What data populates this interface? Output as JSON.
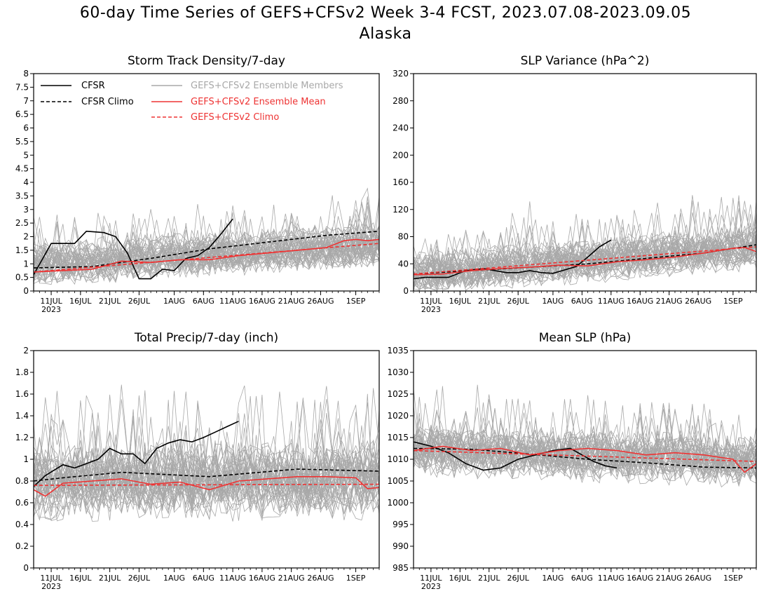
{
  "page": {
    "title": "60-day Time Series of GEFS+CFSv2 Week 3-4 FCST, 2023.07.08-2023.09.05",
    "subtitle": "Alaska"
  },
  "colors": {
    "cfsr": "#000000",
    "members": "#a8a8a8",
    "ens_mean": "#ee3333"
  },
  "legend": {
    "cfsr": "CFSR",
    "cfsr_climo": "CFSR Climo",
    "members": "GEFS+CFSv2 Ensemble Members",
    "ens_mean": "GEFS+CFSv2 Ensemble Mean",
    "ens_climo": "GEFS+CFSv2 Climo"
  },
  "x_axis": {
    "ticks": [
      "11JUL",
      "16JUL",
      "21JUL",
      "26JUL",
      "1AUG",
      "6AUG",
      "11AUG",
      "16AUG",
      "21AUG",
      "26AUG",
      "1SEP"
    ],
    "tick_days": [
      3,
      8,
      13,
      18,
      24,
      29,
      34,
      39,
      44,
      49,
      55
    ],
    "year_label": "2023",
    "n_days": 60
  },
  "chart_data": [
    {
      "type": "line",
      "title": "Storm Track Density/7-day",
      "ylim": [
        0,
        8
      ],
      "yticks": [
        "0",
        "0.5",
        "1",
        "1.5",
        "2",
        "2.5",
        "3",
        "3.5",
        "4",
        "4.5",
        "5",
        "5.5",
        "6",
        "6.5",
        "7",
        "7.5",
        "8"
      ],
      "ytick_values": [
        0,
        0.5,
        1,
        1.5,
        2,
        2.5,
        3,
        3.5,
        4,
        4.5,
        5,
        5.5,
        6,
        6.5,
        7,
        7.5,
        8
      ],
      "member_band": {
        "base_start": 1.0,
        "base_end": 1.7,
        "spread": 0.7
      },
      "series": [
        {
          "name": "CFSR",
          "style": "solid",
          "color": "#000000",
          "x": [
            0,
            3,
            7,
            9,
            12,
            14,
            16,
            18,
            20,
            22,
            24,
            26,
            28,
            30,
            32,
            34
          ],
          "y": [
            0.6,
            1.75,
            1.75,
            2.2,
            2.15,
            2.0,
            1.4,
            0.45,
            0.45,
            0.8,
            0.75,
            1.2,
            1.3,
            1.6,
            2.1,
            2.65
          ]
        },
        {
          "name": "CFSR Climo",
          "style": "dashed",
          "color": "#000000",
          "x": [
            0,
            10,
            20,
            30,
            40,
            50,
            59
          ],
          "y": [
            0.85,
            0.9,
            1.2,
            1.55,
            1.8,
            2.05,
            2.2
          ]
        },
        {
          "name": "GEFS+CFSv2 Ensemble Mean",
          "style": "solid",
          "color": "#ee3333",
          "x": [
            0,
            5,
            10,
            15,
            20,
            25,
            30,
            35,
            40,
            45,
            50,
            53,
            55,
            57,
            59
          ],
          "y": [
            0.7,
            0.75,
            0.8,
            1.1,
            1.05,
            1.15,
            1.15,
            1.3,
            1.4,
            1.5,
            1.6,
            1.85,
            1.9,
            1.85,
            1.9
          ]
        },
        {
          "name": "GEFS+CFSv2 Climo",
          "style": "dashed",
          "color": "#ee3333",
          "x": [
            0,
            59
          ],
          "y": [
            0.7,
            1.75
          ]
        }
      ]
    },
    {
      "type": "line",
      "title": "SLP Variance (hPa^2)",
      "ylim": [
        0,
        320
      ],
      "yticks": [
        "0",
        "40",
        "80",
        "120",
        "160",
        "200",
        "240",
        "280",
        "320"
      ],
      "ytick_values": [
        0,
        40,
        80,
        120,
        160,
        200,
        240,
        280,
        320
      ],
      "member_band": {
        "base_start": 25,
        "base_end": 65,
        "spread": 28
      },
      "series": [
        {
          "name": "CFSR",
          "style": "solid",
          "color": "#000000",
          "x": [
            0,
            2,
            6,
            9,
            12,
            14,
            16,
            18,
            20,
            22,
            24,
            26,
            28,
            30,
            32,
            34
          ],
          "y": [
            18,
            20,
            20,
            30,
            33,
            30,
            27,
            27,
            30,
            27,
            26,
            31,
            36,
            50,
            65,
            75
          ]
        },
        {
          "name": "CFSR Climo",
          "style": "dashed",
          "color": "#000000",
          "x": [
            0,
            10,
            20,
            30,
            40,
            50,
            59
          ],
          "y": [
            25,
            30,
            35,
            40,
            48,
            56,
            68
          ]
        },
        {
          "name": "GEFS+CFSv2 Ensemble Mean",
          "style": "solid",
          "color": "#ee3333",
          "x": [
            0,
            5,
            10,
            15,
            20,
            25,
            30,
            35,
            40,
            45,
            50,
            55,
            57,
            59
          ],
          "y": [
            24,
            25,
            30,
            33,
            35,
            38,
            37,
            43,
            46,
            50,
            56,
            63,
            64,
            58
          ]
        },
        {
          "name": "GEFS+CFSv2 Climo",
          "style": "dashed",
          "color": "#ee3333",
          "x": [
            0,
            59
          ],
          "y": [
            25,
            65
          ]
        }
      ]
    },
    {
      "type": "line",
      "title": "Total Precip/7-day (inch)",
      "ylim": [
        0,
        2
      ],
      "yticks": [
        "0",
        "0.2",
        "0.4",
        "0.6",
        "0.8",
        "1",
        "1.2",
        "1.4",
        "1.6",
        "1.8",
        "2"
      ],
      "ytick_values": [
        0,
        0.2,
        0.4,
        0.6,
        0.8,
        1.0,
        1.2,
        1.4,
        1.6,
        1.8,
        2.0
      ],
      "member_band": {
        "base_start": 0.78,
        "base_end": 0.8,
        "spread": 0.3
      },
      "series": [
        {
          "name": "CFSR",
          "style": "solid",
          "color": "#000000",
          "x": [
            0,
            2,
            5,
            7,
            9,
            11,
            13,
            15,
            17,
            19,
            21,
            23,
            25,
            27,
            29,
            31,
            33,
            35
          ],
          "y": [
            0.75,
            0.85,
            0.95,
            0.92,
            0.96,
            1.0,
            1.1,
            1.05,
            1.05,
            0.96,
            1.1,
            1.15,
            1.18,
            1.16,
            1.2,
            1.25,
            1.3,
            1.35
          ]
        },
        {
          "name": "CFSR Climo",
          "style": "dashed",
          "color": "#000000",
          "x": [
            0,
            5,
            15,
            30,
            45,
            59
          ],
          "y": [
            0.8,
            0.83,
            0.88,
            0.84,
            0.91,
            0.89
          ]
        },
        {
          "name": "GEFS+CFSv2 Ensemble Mean",
          "style": "solid",
          "color": "#ee3333",
          "x": [
            0,
            2,
            5,
            10,
            15,
            20,
            25,
            30,
            35,
            40,
            45,
            50,
            55,
            57,
            59
          ],
          "y": [
            0.72,
            0.66,
            0.78,
            0.8,
            0.82,
            0.77,
            0.79,
            0.72,
            0.8,
            0.82,
            0.84,
            0.84,
            0.83,
            0.73,
            0.74
          ]
        },
        {
          "name": "GEFS+CFSv2 Climo",
          "style": "dashed",
          "color": "#ee3333",
          "x": [
            0,
            59
          ],
          "y": [
            0.76,
            0.77
          ]
        }
      ]
    },
    {
      "type": "line",
      "title": "Mean SLP (hPa)",
      "ylim": [
        985,
        1035
      ],
      "yticks": [
        "985",
        "990",
        "995",
        "1000",
        "1005",
        "1010",
        "1015",
        "1020",
        "1025",
        "1030",
        "1035"
      ],
      "ytick_values": [
        985,
        990,
        995,
        1000,
        1005,
        1010,
        1015,
        1020,
        1025,
        1030,
        1035
      ],
      "member_band": {
        "base_start": 1012,
        "base_end": 1009.5,
        "spread": 5
      },
      "series": [
        {
          "name": "CFSR",
          "style": "solid",
          "color": "#000000",
          "x": [
            0,
            3,
            6,
            9,
            12,
            15,
            18,
            21,
            24,
            27,
            29,
            31,
            33,
            35
          ],
          "y": [
            1014,
            1013,
            1011.5,
            1009,
            1007.5,
            1008,
            1010,
            1011,
            1012,
            1012.5,
            1011,
            1009.5,
            1008.5,
            1008
          ]
        },
        {
          "name": "CFSR Climo",
          "style": "dashed",
          "color": "#000000",
          "x": [
            0,
            10,
            20,
            30,
            40,
            50,
            59
          ],
          "y": [
            1012.5,
            1012.3,
            1011.2,
            1010.0,
            1009.2,
            1008.2,
            1008.0
          ]
        },
        {
          "name": "GEFS+CFSv2 Ensemble Mean",
          "style": "solid",
          "color": "#ee3333",
          "x": [
            0,
            5,
            10,
            15,
            20,
            25,
            30,
            35,
            40,
            45,
            50,
            55,
            57,
            59
          ],
          "y": [
            1012,
            1013,
            1012,
            1012.5,
            1011,
            1012,
            1012.5,
            1012,
            1011,
            1011.5,
            1011,
            1010,
            1007,
            1009
          ]
        },
        {
          "name": "GEFS+CFSv2 Climo",
          "style": "dashed",
          "color": "#ee3333",
          "x": [
            0,
            59
          ],
          "y": [
            1012.0,
            1009.5
          ]
        }
      ]
    }
  ]
}
